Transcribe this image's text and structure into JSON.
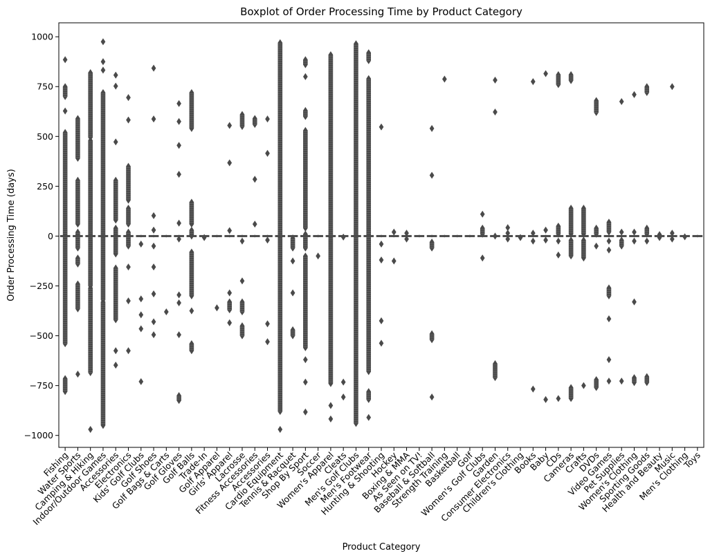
{
  "chart_data": {
    "type": "boxplot",
    "title": "Boxplot of Order Processing Time by Product Category",
    "xlabel": "Product Category",
    "ylabel": "Order Processing Time (days)",
    "ylim": [
      -1060,
      1070
    ],
    "yticks": [
      -1000,
      -750,
      -500,
      -250,
      0,
      250,
      500,
      750,
      1000
    ],
    "ytick_labels": [
      "−1000",
      "−750",
      "−500",
      "−250",
      "0",
      "250",
      "500",
      "750",
      "1000"
    ],
    "grid": false,
    "colors": {
      "box": "#4a4a4a",
      "axis": "#000000"
    },
    "categories": [
      {
        "name": "Fishing",
        "median": 0,
        "whisker": [
          -6,
          6
        ],
        "outliers": [
          [
            -780,
            -715
          ],
          [
            -540,
            520
          ],
          [
            625,
            630
          ],
          [
            700,
            750
          ],
          [
            885,
            885
          ]
        ]
      },
      {
        "name": "Water Sports",
        "median": 0,
        "whisker": [
          -6,
          6
        ],
        "outliers": [
          [
            -695,
            -690
          ],
          [
            -365,
            -240
          ],
          [
            -140,
            -110
          ],
          [
            -60,
            20
          ],
          [
            60,
            280
          ],
          [
            390,
            590
          ]
        ]
      },
      {
        "name": "Camping & Hiking",
        "median": 0,
        "whisker": [
          -6,
          6
        ],
        "outliers": [
          [
            -975,
            -965
          ],
          [
            -685,
            -260
          ],
          [
            -250,
            480
          ],
          [
            495,
            820
          ]
        ]
      },
      {
        "name": "Indoor/Outdoor Games",
        "median": 0,
        "whisker": [
          -6,
          6
        ],
        "outliers": [
          [
            -950,
            -330
          ],
          [
            -320,
            720
          ],
          [
            825,
            840
          ],
          [
            865,
            885
          ],
          [
            970,
            980
          ]
        ]
      },
      {
        "name": "Accessories",
        "median": 0,
        "whisker": [
          -6,
          6
        ],
        "outliers": [
          [
            -655,
            -640
          ],
          [
            -580,
            -570
          ],
          [
            -420,
            -160
          ],
          [
            -90,
            40
          ],
          [
            80,
            280
          ],
          [
            470,
            475
          ],
          [
            745,
            760
          ],
          [
            800,
            815
          ]
        ]
      },
      {
        "name": "Electronics",
        "median": 0,
        "whisker": [
          -6,
          6
        ],
        "outliers": [
          [
            -580,
            -570
          ],
          [
            -330,
            -320
          ],
          [
            -160,
            -150
          ],
          [
            -50,
            20
          ],
          [
            60,
            140
          ],
          [
            180,
            350
          ],
          [
            575,
            590
          ],
          [
            690,
            700
          ]
        ]
      },
      {
        "name": "Kids' Golf Clubs",
        "median": 0,
        "whisker": [
          -6,
          6
        ],
        "outliers": [
          [
            -735,
            -725
          ],
          [
            -470,
            -460
          ],
          [
            -400,
            -390
          ],
          [
            -320,
            -310
          ],
          [
            -50,
            -30
          ]
        ]
      },
      {
        "name": "Golf Shoes",
        "median": 0,
        "whisker": [
          -6,
          6
        ],
        "outliers": [
          [
            -500,
            -490
          ],
          [
            -440,
            -420
          ],
          [
            -300,
            -280
          ],
          [
            -160,
            -150
          ],
          [
            -60,
            -40
          ],
          [
            20,
            40
          ],
          [
            95,
            110
          ],
          [
            580,
            595
          ],
          [
            835,
            850
          ]
        ]
      },
      {
        "name": "Golf Bags & Carts",
        "median": 0,
        "whisker": [
          -6,
          6
        ],
        "outliers": [
          [
            -385,
            -375
          ]
        ]
      },
      {
        "name": "Golf Gloves",
        "median": 0,
        "whisker": [
          -6,
          6
        ],
        "outliers": [
          [
            -825,
            -800
          ],
          [
            -500,
            -490
          ],
          [
            -340,
            -330
          ],
          [
            -300,
            -290
          ],
          [
            -20,
            -10
          ],
          [
            60,
            70
          ],
          [
            305,
            315
          ],
          [
            450,
            460
          ],
          [
            570,
            580
          ],
          [
            660,
            670
          ]
        ]
      },
      {
        "name": "Golf Balls",
        "median": 0,
        "whisker": [
          -6,
          6
        ],
        "outliers": [
          [
            -575,
            -540
          ],
          [
            -380,
            -370
          ],
          [
            -300,
            -80
          ],
          [
            0,
            30
          ],
          [
            60,
            170
          ],
          [
            540,
            720
          ]
        ]
      },
      {
        "name": "Trade-In",
        "median": 0,
        "whisker": [
          -6,
          6
        ],
        "outliers": [
          [
            -10,
            -5
          ]
        ]
      },
      {
        "name": "Golf Apparel",
        "median": 0,
        "whisker": [
          -6,
          6
        ],
        "outliers": [
          [
            -370,
            -350
          ]
        ]
      },
      {
        "name": "Girls' Apparel",
        "median": 0,
        "whisker": [
          -6,
          6
        ],
        "outliers": [
          [
            -440,
            -430
          ],
          [
            -370,
            -330
          ],
          [
            -290,
            -280
          ],
          [
            20,
            35
          ],
          [
            360,
            375
          ],
          [
            550,
            560
          ]
        ]
      },
      {
        "name": "Lacrosse",
        "median": 0,
        "whisker": [
          -6,
          6
        ],
        "outliers": [
          [
            -500,
            -450
          ],
          [
            -380,
            -330
          ],
          [
            -230,
            -220
          ],
          [
            -30,
            -20
          ],
          [
            550,
            610
          ]
        ]
      },
      {
        "name": "Fitness Accessories",
        "median": 0,
        "whisker": [
          -6,
          6
        ],
        "outliers": [
          [
            50,
            70
          ],
          [
            280,
            290
          ],
          [
            560,
            590
          ]
        ]
      },
      {
        "name": "Accessories",
        "median": 0,
        "whisker": [
          -6,
          6
        ],
        "outliers": [
          [
            -535,
            -525
          ],
          [
            -445,
            -435
          ],
          [
            -30,
            -10
          ],
          [
            410,
            420
          ],
          [
            580,
            595
          ]
        ]
      },
      {
        "name": "Cardio Equipment",
        "median": 0,
        "whisker": [
          -6,
          6
        ],
        "outliers": [
          [
            -975,
            -965
          ],
          [
            -880,
            970
          ]
        ]
      },
      {
        "name": "Tennis & Racquet",
        "median": 0,
        "whisker": [
          -6,
          6
        ],
        "outliers": [
          [
            -500,
            -470
          ],
          [
            -290,
            -280
          ],
          [
            -130,
            -120
          ],
          [
            -60,
            -10
          ]
        ]
      },
      {
        "name": "Shop By Sport",
        "median": 0,
        "whisker": [
          -6,
          6
        ],
        "outliers": [
          [
            -890,
            -875
          ],
          [
            -740,
            -725
          ],
          [
            -630,
            -610
          ],
          [
            -560,
            -100
          ],
          [
            -60,
            10
          ],
          [
            40,
            530
          ],
          [
            600,
            630
          ],
          [
            790,
            810
          ],
          [
            860,
            885
          ]
        ]
      },
      {
        "name": "Soccer",
        "median": 0,
        "whisker": [
          -6,
          6
        ],
        "outliers": [
          [
            -105,
            -95
          ]
        ]
      },
      {
        "name": "Women's Apparel",
        "median": 0,
        "whisker": [
          -6,
          6
        ],
        "outliers": [
          [
            -925,
            -910
          ],
          [
            -860,
            -840
          ],
          [
            -740,
            910
          ]
        ]
      },
      {
        "name": "Cleats",
        "median": 0,
        "whisker": [
          -6,
          6
        ],
        "outliers": [
          [
            -815,
            -800
          ],
          [
            -740,
            -725
          ],
          [
            -10,
            0
          ]
        ]
      },
      {
        "name": "Men's Golf Clubs",
        "median": 0,
        "whisker": [
          -6,
          6
        ],
        "outliers": [
          [
            -940,
            965
          ]
        ]
      },
      {
        "name": "Men's Footwear",
        "median": 0,
        "whisker": [
          -6,
          6
        ],
        "outliers": [
          [
            -920,
            -900
          ],
          [
            -820,
            -780
          ],
          [
            -680,
            790
          ],
          [
            880,
            920
          ]
        ]
      },
      {
        "name": "Hunting & Shooting",
        "median": 0,
        "whisker": [
          -6,
          6
        ],
        "outliers": [
          [
            -545,
            -530
          ],
          [
            -430,
            -420
          ],
          [
            -130,
            -110
          ],
          [
            -50,
            -30
          ],
          [
            540,
            555
          ]
        ]
      },
      {
        "name": "Hockey",
        "median": 0,
        "whisker": [
          -6,
          6
        ],
        "outliers": [
          [
            -130,
            -120
          ],
          [
            15,
            25
          ]
        ]
      },
      {
        "name": "Boxing & MMA",
        "median": 0,
        "whisker": [
          -6,
          6
        ],
        "outliers": [
          [
            -20,
            -10
          ],
          [
            10,
            20
          ]
        ]
      },
      {
        "name": "As Seen on  TV!",
        "median": 0,
        "whisker": [
          -6,
          6
        ],
        "outliers": []
      },
      {
        "name": "Baseball & Softball",
        "median": 0,
        "whisker": [
          -6,
          6
        ],
        "outliers": [
          [
            -815,
            -800
          ],
          [
            -520,
            -490
          ],
          [
            -60,
            -30
          ],
          [
            300,
            310
          ],
          [
            535,
            545
          ]
        ]
      },
      {
        "name": "Strength Training",
        "median": 0,
        "whisker": [
          -6,
          6
        ],
        "outliers": [
          [
            780,
            795
          ]
        ]
      },
      {
        "name": "Basketball",
        "median": 0,
        "whisker": [
          -6,
          6
        ],
        "outliers": []
      },
      {
        "name": "Golf",
        "median": 0,
        "whisker": [
          -6,
          6
        ],
        "outliers": []
      },
      {
        "name": "Women's Golf Clubs",
        "median": 0,
        "whisker": [
          -6,
          6
        ],
        "outliers": [
          [
            -120,
            -100
          ],
          [
            10,
            40
          ],
          [
            100,
            120
          ]
        ]
      },
      {
        "name": "Garden",
        "median": 0,
        "whisker": [
          -6,
          6
        ],
        "outliers": [
          [
            -710,
            -640
          ],
          [
            -10,
            10
          ],
          [
            615,
            630
          ],
          [
            775,
            790
          ]
        ]
      },
      {
        "name": "Consumer Electronics",
        "median": 0,
        "whisker": [
          -6,
          6
        ],
        "outliers": [
          [
            -20,
            -10
          ],
          [
            10,
            20
          ],
          [
            35,
            50
          ]
        ]
      },
      {
        "name": "Children's Clothing",
        "median": 0,
        "whisker": [
          -6,
          6
        ],
        "outliers": [
          [
            -10,
            -5
          ]
        ]
      },
      {
        "name": "Books",
        "median": 0,
        "whisker": [
          -6,
          6
        ],
        "outliers": [
          [
            -775,
            -760
          ],
          [
            -30,
            -20
          ],
          [
            10,
            20
          ],
          [
            770,
            780
          ]
        ]
      },
      {
        "name": "Baby",
        "median": 0,
        "whisker": [
          -6,
          6
        ],
        "outliers": [
          [
            -825,
            -815
          ],
          [
            -30,
            -10
          ],
          [
            20,
            40
          ],
          [
            810,
            820
          ]
        ]
      },
      {
        "name": "CDs",
        "median": 0,
        "whisker": [
          -6,
          6
        ],
        "outliers": [
          [
            -820,
            -810
          ],
          [
            -100,
            -90
          ],
          [
            -30,
            -20
          ],
          [
            10,
            50
          ],
          [
            760,
            810
          ]
        ]
      },
      {
        "name": "Cameras",
        "median": 0,
        "whisker": [
          -6,
          6
        ],
        "outliers": [
          [
            -815,
            -760
          ],
          [
            -100,
            -20
          ],
          [
            10,
            140
          ],
          [
            780,
            810
          ]
        ]
      },
      {
        "name": "Crafts",
        "median": 0,
        "whisker": [
          -6,
          6
        ],
        "outliers": [
          [
            -760,
            -740
          ],
          [
            -110,
            -20
          ],
          [
            10,
            140
          ]
        ]
      },
      {
        "name": "DVDs",
        "median": 0,
        "whisker": [
          -6,
          6
        ],
        "outliers": [
          [
            -760,
            -720
          ],
          [
            -60,
            -40
          ],
          [
            10,
            40
          ],
          [
            620,
            680
          ]
        ]
      },
      {
        "name": "Video Games",
        "median": 0,
        "whisker": [
          -6,
          6
        ],
        "outliers": [
          [
            -735,
            -720
          ],
          [
            -625,
            -615
          ],
          [
            -420,
            -410
          ],
          [
            -300,
            -260
          ],
          [
            -80,
            -60
          ],
          [
            -30,
            -20
          ],
          [
            20,
            70
          ]
        ]
      },
      {
        "name": "Pet Supplies",
        "median": 0,
        "whisker": [
          -6,
          6
        ],
        "outliers": [
          [
            -735,
            -720
          ],
          [
            -50,
            -20
          ],
          [
            10,
            30
          ],
          [
            670,
            680
          ]
        ]
      },
      {
        "name": "Women's Clothing",
        "median": 0,
        "whisker": [
          -6,
          6
        ],
        "outliers": [
          [
            -735,
            -710
          ],
          [
            -340,
            -320
          ],
          [
            -30,
            -20
          ],
          [
            10,
            30
          ],
          [
            705,
            715
          ]
        ]
      },
      {
        "name": "Sporting Goods",
        "median": 0,
        "whisker": [
          -6,
          6
        ],
        "outliers": [
          [
            -735,
            -705
          ],
          [
            -30,
            -20
          ],
          [
            10,
            40
          ],
          [
            720,
            750
          ]
        ]
      },
      {
        "name": "Health and Beauty",
        "median": 0,
        "whisker": [
          -6,
          6
        ],
        "outliers": [
          [
            -10,
            -5
          ],
          [
            5,
            10
          ]
        ]
      },
      {
        "name": "Music",
        "median": 0,
        "whisker": [
          -6,
          6
        ],
        "outliers": [
          [
            -20,
            -10
          ],
          [
            10,
            20
          ],
          [
            745,
            755
          ]
        ]
      },
      {
        "name": "Men's Clothing",
        "median": 0,
        "whisker": [
          -6,
          6
        ],
        "outliers": [
          [
            -5,
            -2
          ]
        ]
      },
      {
        "name": "Toys",
        "median": 0,
        "whisker": [
          -6,
          6
        ],
        "outliers": []
      }
    ]
  }
}
